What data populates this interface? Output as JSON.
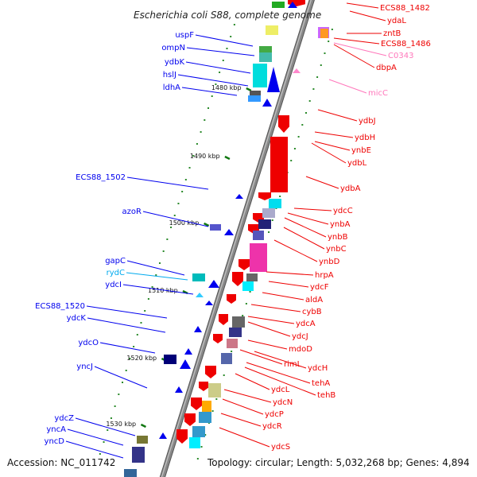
{
  "title": "Escherichia coli S88, complete genome",
  "footer": {
    "accession": "Accession: NC_011742",
    "topology": "Topology: circular; Length: 5,032,268 bp; Genes: 4,894"
  },
  "scale_labels": [
    "1480 kbp",
    "1490 kbp",
    "1500 kbp",
    "1510 kbp",
    "1520 kbp",
    "1530 kbp"
  ],
  "colors": {
    "left_strand": "#0000ee",
    "right_strand": "#ee0000",
    "rna": "#ff88cc",
    "label_blue": "#0000cc",
    "label_red": "#dd0000",
    "label_pink": "#ff77bb",
    "label_cyan": "#00aaee",
    "backbone": "#888888",
    "scale": "#117711"
  },
  "left_genes": [
    {
      "name": "uspF"
    },
    {
      "name": "ompN"
    },
    {
      "name": "ydbK"
    },
    {
      "name": "hslJ"
    },
    {
      "name": "ldhA"
    },
    {
      "name": "ECS88_1502"
    },
    {
      "name": "azoR"
    },
    {
      "name": "gapC"
    },
    {
      "name": "rydC"
    },
    {
      "name": "ydcI"
    },
    {
      "name": "ECS88_1520"
    },
    {
      "name": "ydcK"
    },
    {
      "name": "ydcO"
    },
    {
      "name": "yncJ"
    },
    {
      "name": "ydcZ"
    },
    {
      "name": "yncA"
    },
    {
      "name": "yncD"
    }
  ],
  "right_genes": [
    {
      "name": "ECS88_1482"
    },
    {
      "name": "ydaL"
    },
    {
      "name": "zntB"
    },
    {
      "name": "ECS88_1486"
    },
    {
      "name": "C0343"
    },
    {
      "name": "dbpA"
    },
    {
      "name": "micC"
    },
    {
      "name": "ydbJ"
    },
    {
      "name": "ydbH"
    },
    {
      "name": "ynbE"
    },
    {
      "name": "ydbL"
    },
    {
      "name": "ydbA"
    },
    {
      "name": "ydcC"
    },
    {
      "name": "ynbA"
    },
    {
      "name": "ynbB"
    },
    {
      "name": "ynbC"
    },
    {
      "name": "ynbD"
    },
    {
      "name": "hrpA"
    },
    {
      "name": "ydcF"
    },
    {
      "name": "aldA"
    },
    {
      "name": "cybB"
    },
    {
      "name": "ydcA"
    },
    {
      "name": "ydcJ"
    },
    {
      "name": "mdoD"
    },
    {
      "name": "rimL"
    },
    {
      "name": "ydcH"
    },
    {
      "name": "tehA"
    },
    {
      "name": "tehB"
    },
    {
      "name": "ydcL"
    },
    {
      "name": "ydcN"
    },
    {
      "name": "ydcP"
    },
    {
      "name": "ydcR"
    },
    {
      "name": "ydcS"
    }
  ]
}
